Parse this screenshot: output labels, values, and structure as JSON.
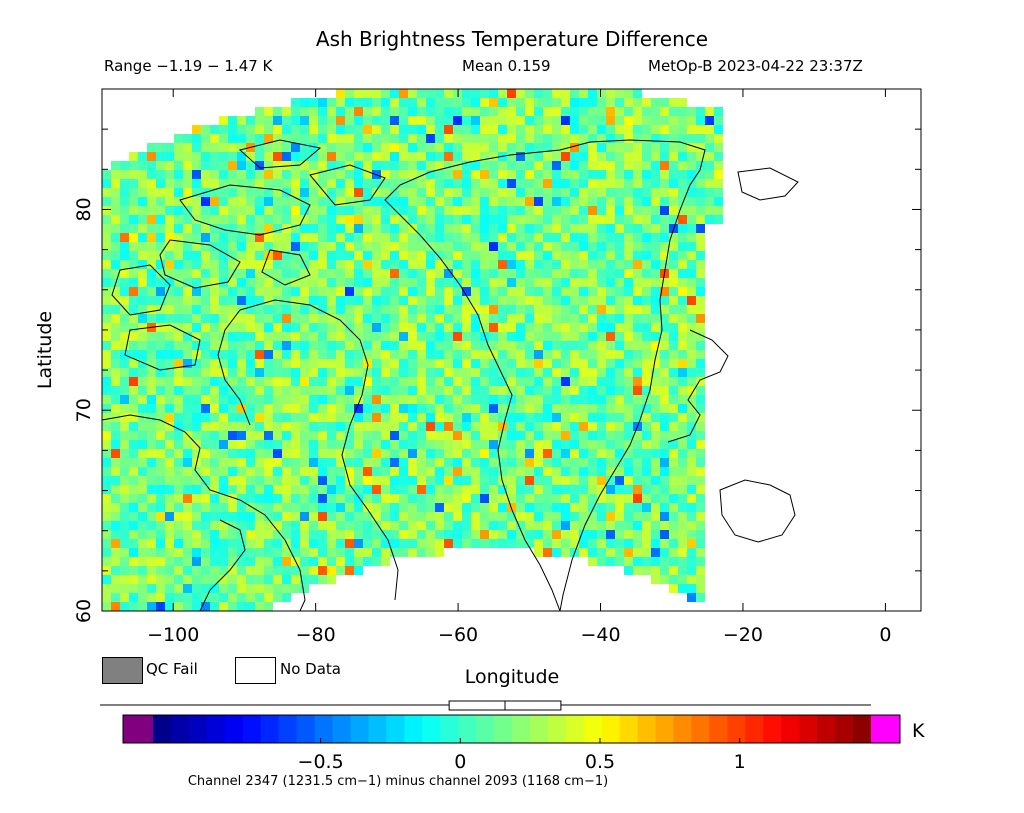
{
  "chart_data": {
    "type": "heatmap",
    "title": "Ash Brightness Temperature Difference",
    "subtitle_left": "Range −1.19 − 1.47 K",
    "subtitle_center": "Mean 0.159",
    "subtitle_right": "MetOp-B 2023-04-22 23:37Z",
    "range": [
      -1.19,
      1.47
    ],
    "mean": 0.159,
    "satellite": "MetOp-B",
    "datetime": "2023-04-22 23:37Z",
    "xlabel": "Longitude",
    "ylabel": "Latitude",
    "xlim": [
      -110,
      5
    ],
    "ylim": [
      60,
      86
    ],
    "x_ticks": [
      -100,
      -80,
      -60,
      -40,
      -20,
      0
    ],
    "x_tick_labels": [
      "−100",
      "−80",
      "−60",
      "−40",
      "−20",
      "0"
    ],
    "y_ticks": [
      60,
      70,
      80
    ],
    "y_tick_labels": [
      "60",
      "70",
      "80"
    ],
    "legend": [
      {
        "label": "QC Fail",
        "color": "#808080"
      },
      {
        "label": "No Data",
        "color": "#ffffff"
      }
    ],
    "colorbar": {
      "min": -1.1,
      "max": 1.47,
      "ticks": [
        -0.5,
        0,
        0.5,
        1
      ],
      "tick_labels": [
        "−0.5",
        "0",
        "0.5",
        "1"
      ],
      "unit": "K",
      "under_color": "#800080",
      "over_color": "#ff00ff",
      "colormap": "jet",
      "histogram_box": [
        -0.04,
        0.36
      ],
      "histogram_median": 0.16
    },
    "footnote": "Channel 2347 (1231.5 cm−1) minus channel 2093 (1168 cm−1)"
  }
}
